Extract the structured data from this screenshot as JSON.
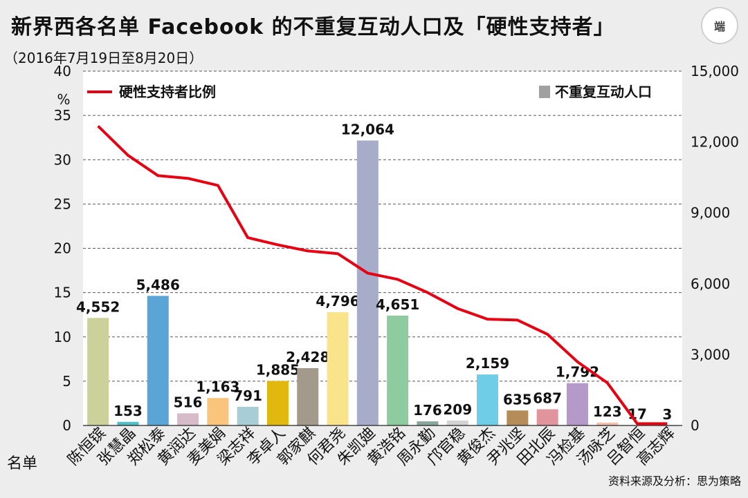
{
  "header": {
    "title": "新界西各名单 Facebook 的不重复互动人口及「硬性支持者」",
    "subtitle": "（2016年7月19日至8月20日）",
    "logo_text": "端",
    "source": "资料来源及分析：思为策略"
  },
  "chart_data": {
    "type": "bar+line",
    "categories": [
      "陈恒镔",
      "张慧晶",
      "郑松泰",
      "黄润达",
      "麦美娟",
      "梁志祥",
      "李卓人",
      "郭家麒",
      "何君尧",
      "朱凯廸",
      "黄浩铭",
      "周永勤",
      "邝官稳",
      "黄俊杰",
      "尹兆坚",
      "田北辰",
      "冯检基",
      "汤咏芝",
      "吕智恒",
      "高志辉"
    ],
    "xlabel": "名单",
    "series": [
      {
        "name": "不重复互动人口",
        "type": "bar",
        "axis": "right",
        "values": [
          4552,
          153,
          5486,
          516,
          1163,
          791,
          1885,
          2428,
          4796,
          12064,
          4651,
          176,
          209,
          2159,
          635,
          687,
          1792,
          123,
          17,
          3
        ],
        "value_labels": [
          "4,552",
          "153",
          "5,486",
          "516",
          "1,163",
          "791",
          "1,885",
          "2,428",
          "4,796",
          "12,064",
          "4,651",
          "176",
          "209",
          "2,159",
          "635",
          "687",
          "1,792",
          "123",
          "17",
          "3"
        ],
        "colors": [
          "#ccd09a",
          "#4fbfc4",
          "#5aa5d5",
          "#d5bcc8",
          "#f9c57d",
          "#a9cdd5",
          "#e1b90e",
          "#a49a8c",
          "#f9e48c",
          "#a7adc8",
          "#8ecb9e",
          "#8aa89e",
          "#d3d3d3",
          "#6fcde6",
          "#b58b57",
          "#e0959c",
          "#b59ac9",
          "#f5bfae",
          "#eae4d8",
          "#d9e2e8"
        ]
      },
      {
        "name": "硬性支持者比例",
        "type": "line",
        "axis": "left",
        "color": "#e60012",
        "values": [
          33.8,
          30.5,
          28.2,
          27.9,
          27.1,
          21.2,
          20.4,
          19.7,
          19.4,
          17.2,
          16.5,
          15.0,
          13.2,
          12.0,
          11.9,
          10.3,
          7.2,
          4.8,
          0.2,
          0.2
        ]
      }
    ],
    "left_axis": {
      "unit": "%",
      "min": 0,
      "max": 40,
      "ticks": [
        "0",
        "5",
        "10",
        "15",
        "20",
        "25",
        "30",
        "35",
        "40"
      ]
    },
    "right_axis": {
      "min": 0,
      "max": 15000,
      "ticks": [
        "0",
        "3,000",
        "6,000",
        "9,000",
        "12,000",
        "15,000"
      ]
    },
    "grid": true,
    "legend": {
      "line_label": "硬性支持者比例",
      "bar_label": "不重复互动人口",
      "bar_swatch": "#a0a0a0"
    }
  }
}
